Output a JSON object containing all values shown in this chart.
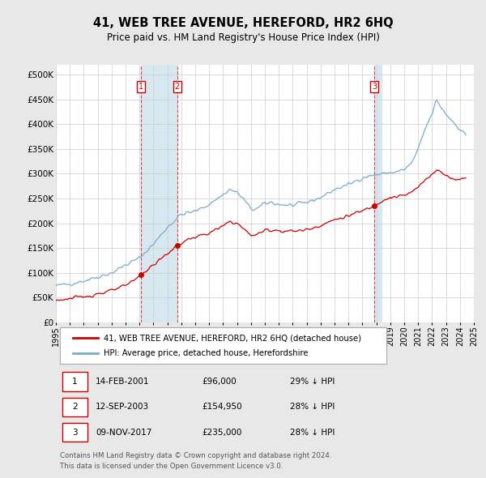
{
  "title": "41, WEB TREE AVENUE, HEREFORD, HR2 6HQ",
  "subtitle": "Price paid vs. HM Land Registry's House Price Index (HPI)",
  "ylim": [
    0,
    520000
  ],
  "yticks": [
    0,
    50000,
    100000,
    150000,
    200000,
    250000,
    300000,
    350000,
    400000,
    450000,
    500000
  ],
  "ytick_labels": [
    "£0",
    "£50K",
    "£100K",
    "£150K",
    "£200K",
    "£250K",
    "£300K",
    "£350K",
    "£400K",
    "£450K",
    "£500K"
  ],
  "hpi_color": "#7aabcc",
  "price_color": "#cc0000",
  "background_color": "#e8e8e8",
  "plot_background": "#ffffff",
  "shade_color": "#d8e8f0",
  "transaction_dates": [
    2001.12,
    2003.71,
    2017.86
  ],
  "transaction_labels": [
    "1",
    "2",
    "3"
  ],
  "transaction_prices": [
    96000,
    154950,
    235000
  ],
  "legend_line1": "41, WEB TREE AVENUE, HEREFORD, HR2 6HQ (detached house)",
  "legend_line2": "HPI: Average price, detached house, Herefordshire",
  "table_data": [
    [
      "1",
      "14-FEB-2001",
      "£96,000",
      "29% ↓ HPI"
    ],
    [
      "2",
      "12-SEP-2003",
      "£154,950",
      "28% ↓ HPI"
    ],
    [
      "3",
      "09-NOV-2017",
      "£235,000",
      "28% ↓ HPI"
    ]
  ],
  "footnote1": "Contains HM Land Registry data © Crown copyright and database right 2024.",
  "footnote2": "This data is licensed under the Open Government Licence v3.0.",
  "xlim": [
    1995.0,
    2025.0
  ],
  "xticks": [
    1995,
    1996,
    1997,
    1998,
    1999,
    2000,
    2001,
    2002,
    2003,
    2004,
    2005,
    2006,
    2007,
    2008,
    2009,
    2010,
    2011,
    2012,
    2013,
    2014,
    2015,
    2016,
    2017,
    2018,
    2019,
    2020,
    2021,
    2022,
    2023,
    2024,
    2025
  ]
}
